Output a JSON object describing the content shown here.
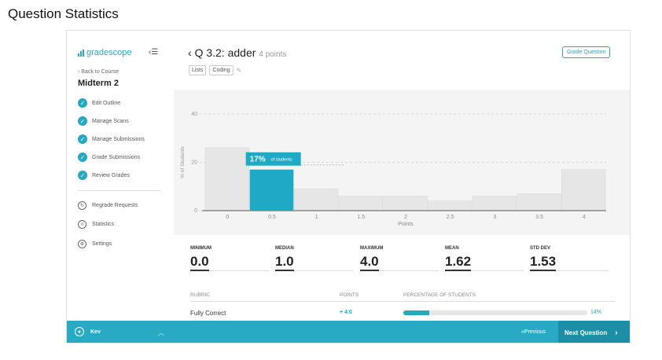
{
  "page_heading": "Question Statistics",
  "sidebar": {
    "logo_text": "gradescope",
    "back_label": "Back to Course",
    "course_title": "Midterm 2",
    "steps": [
      {
        "label": "Edit Outline",
        "icon": "check-circle-icon"
      },
      {
        "label": "Manage Scans",
        "icon": "check-circle-icon"
      },
      {
        "label": "Manage Submissions",
        "icon": "check-circle-icon"
      },
      {
        "label": "Grade Submissions",
        "icon": "check-circle-icon"
      },
      {
        "label": "Review Grades",
        "icon": "check-circle-icon"
      }
    ],
    "tools": [
      {
        "label": "Regrade Requests",
        "icon": "regrade-icon"
      },
      {
        "label": "Statistics",
        "icon": "statistics-icon"
      },
      {
        "label": "Settings",
        "icon": "settings-gear-icon"
      }
    ]
  },
  "header": {
    "question_title": "Q 3.2: adder",
    "points_label": "4 points",
    "tags": [
      "Lists",
      "Coding"
    ],
    "grade_button": "Grade Question"
  },
  "chart_data": {
    "type": "bar",
    "categories": [
      "0",
      "0.5",
      "1",
      "1.5",
      "2",
      "2.5",
      "3",
      "3.5",
      "4"
    ],
    "values": [
      26,
      17,
      9,
      6,
      6,
      4,
      6,
      7,
      17
    ],
    "ylim": [
      0,
      40
    ],
    "yticks": [
      "0",
      "20",
      "40"
    ],
    "xlabel": "Points",
    "ylabel": "% of Students",
    "highlight_index": 1,
    "highlight_value": "17%",
    "highlight_suffix": "of students",
    "grid": true
  },
  "stats": [
    {
      "label": "MINIMUM",
      "value": "0.0"
    },
    {
      "label": "MEDIAN",
      "value": "1.0"
    },
    {
      "label": "MAXIMUM",
      "value": "4.0"
    },
    {
      "label": "MEAN",
      "value": "1.62"
    },
    {
      "label": "STD DEV",
      "value": "1.53"
    }
  ],
  "rubric": {
    "headers": {
      "rubric": "RUBRIC",
      "points": "POINTS",
      "percentage": "PERCENTAGE OF STUDENTS"
    },
    "rows": [
      {
        "name": "Fully Correct",
        "points": "+ 4.0",
        "percent": 14,
        "percent_label": "14%"
      }
    ]
  },
  "bottom_bar": {
    "user": "Kev",
    "previous": "Previous",
    "next": "Next Question"
  },
  "colors": {
    "accent": "#28a9c4",
    "bar": "#e6e6e6",
    "bar_highlight": "#1fa9c7"
  }
}
